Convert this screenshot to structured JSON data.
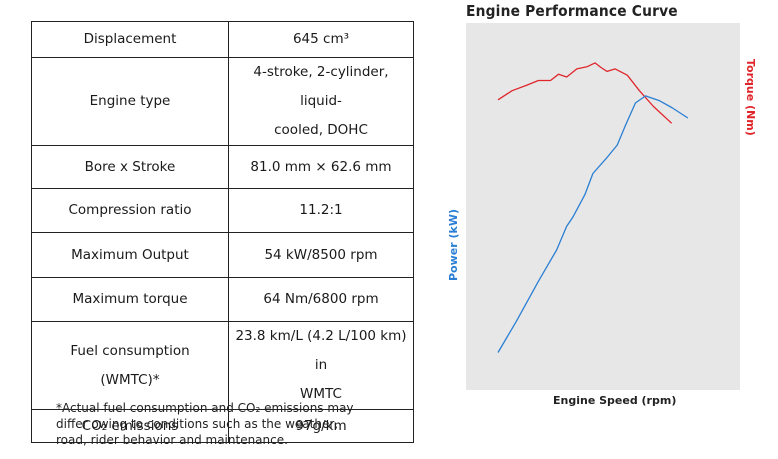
{
  "specs": [
    {
      "label": "Displacement",
      "value": "645 cm³"
    },
    {
      "label": "Engine type",
      "value_lines": [
        "4-stroke, 2-cylinder, liquid-",
        "cooled, DOHC"
      ]
    },
    {
      "label": "Bore x Stroke",
      "value": "81.0 mm × 62.6 mm"
    },
    {
      "label": "Compression ratio",
      "value": "11.2:1"
    },
    {
      "label": "Maximum Output",
      "value": "54 kW/8500 rpm"
    },
    {
      "label": "Maximum torque",
      "value": "64 Nm/6800 rpm"
    },
    {
      "label_lines": [
        "Fuel consumption",
        "(WMTC)*"
      ],
      "value_lines": [
        "23.8 km/L (4.2 L/100 km) in",
        "WMTC"
      ]
    },
    {
      "label": "CO₂ emissions",
      "value": "97g/km"
    }
  ],
  "footnote_lines": [
    "*Actual fuel consumption and CO₂ emissions may",
    "differ owing to conditions such as the weather,",
    "road, rider behavior and maintenance."
  ],
  "chart_data": {
    "type": "line",
    "title": "Engine Performance Curve",
    "xlabel": "Engine Speed (rpm)",
    "ylabel_left": "Power (kW)",
    "ylabel_right": "Torque (Nm)",
    "x_range": [
      0,
      100
    ],
    "y_range": [
      0,
      100
    ],
    "series": [
      {
        "name": "Torque (Nm)",
        "color": "#e0262b",
        "axis": "right",
        "points": [
          [
            0,
            80.4
          ],
          [
            7,
            83
          ],
          [
            14,
            84.5
          ],
          [
            20,
            85.9
          ],
          [
            26,
            85.9
          ],
          [
            30,
            87.7
          ],
          [
            34,
            86.9
          ],
          [
            39,
            89.2
          ],
          [
            44,
            89.8
          ],
          [
            48,
            90.9
          ],
          [
            51,
            89.6
          ],
          [
            54,
            88.5
          ],
          [
            58,
            89.2
          ],
          [
            64,
            87.4
          ],
          [
            70,
            83
          ],
          [
            77,
            78.5
          ],
          [
            86,
            73.7
          ]
        ]
      },
      {
        "name": "Power (kW)",
        "color": "#2a7fd4",
        "axis": "left",
        "points": [
          [
            0,
            8.4
          ],
          [
            9,
            17.2
          ],
          [
            20,
            28.7
          ],
          [
            29,
            37.6
          ],
          [
            34,
            44.4
          ],
          [
            37,
            46.9
          ],
          [
            43,
            53.4
          ],
          [
            47,
            59.4
          ],
          [
            54,
            64
          ],
          [
            59,
            67.5
          ],
          [
            63,
            73
          ],
          [
            68,
            79.5
          ],
          [
            73,
            81.5
          ],
          [
            80,
            80.1
          ],
          [
            86,
            78.2
          ],
          [
            94,
            75.2
          ]
        ]
      }
    ]
  }
}
